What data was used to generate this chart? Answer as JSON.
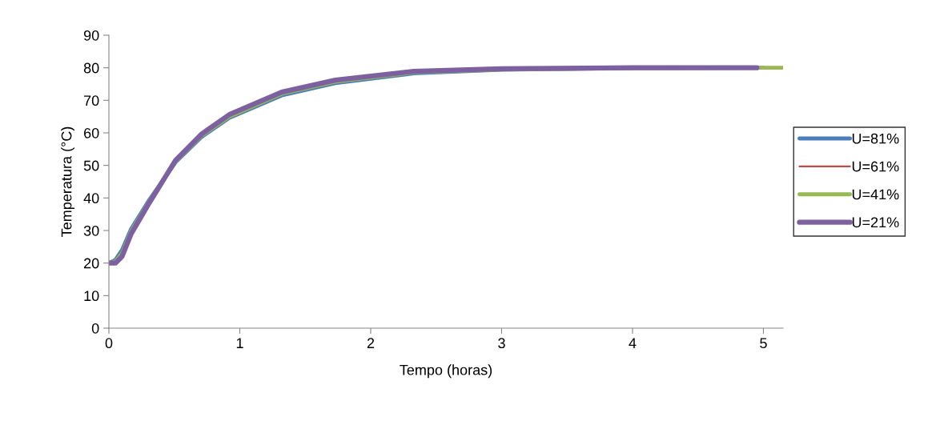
{
  "chart_data": {
    "type": "line",
    "xlabel": "Tempo (horas)",
    "ylabel": "Temperatura (°C)",
    "xlim": [
      0,
      5.15
    ],
    "xticks": [
      0,
      1,
      2,
      3,
      4,
      5
    ],
    "ylim": [
      0,
      90
    ],
    "yticks": [
      0,
      10,
      20,
      30,
      40,
      50,
      60,
      70,
      80,
      90
    ],
    "grid": false,
    "legend": "right",
    "marker": "none",
    "line_style": "solid",
    "series": [
      {
        "name": "U=81%",
        "color": "#4a7ebb",
        "x": [
          0,
          0.05,
          0.1,
          0.17,
          0.31,
          0.51,
          0.71,
          0.92,
          1.32,
          1.73,
          2.33,
          3,
          4,
          5
        ],
        "values": [
          20,
          21,
          24,
          30.5,
          39.5,
          51,
          58.8,
          64.6,
          71.5,
          75.3,
          78.3,
          79.4,
          79.9,
          80
        ]
      },
      {
        "name": "U=61%",
        "color": "#be4b48"
      },
      {
        "name": "U=41%",
        "color": "#98b954",
        "x": [
          0,
          0.05,
          0.1,
          0.17,
          0.31,
          0.51,
          0.71,
          0.92,
          1.32,
          1.73,
          2.33,
          3,
          4,
          5,
          5.15
        ],
        "values": [
          20,
          20.5,
          23,
          29.8,
          39,
          51.3,
          59.2,
          65,
          72,
          75.7,
          78.6,
          79.5,
          80,
          80,
          80
        ]
      },
      {
        "name": "U=21%",
        "color": "#7d60a0",
        "x": [
          0,
          0.05,
          0.1,
          0.17,
          0.31,
          0.51,
          0.71,
          0.92,
          1.32,
          1.73,
          2.33,
          3,
          4,
          4.95
        ],
        "values": [
          20,
          20,
          22,
          29,
          38.6,
          51.6,
          59.7,
          65.6,
          72.5,
          76.2,
          78.9,
          79.7,
          80,
          80
        ]
      }
    ]
  }
}
